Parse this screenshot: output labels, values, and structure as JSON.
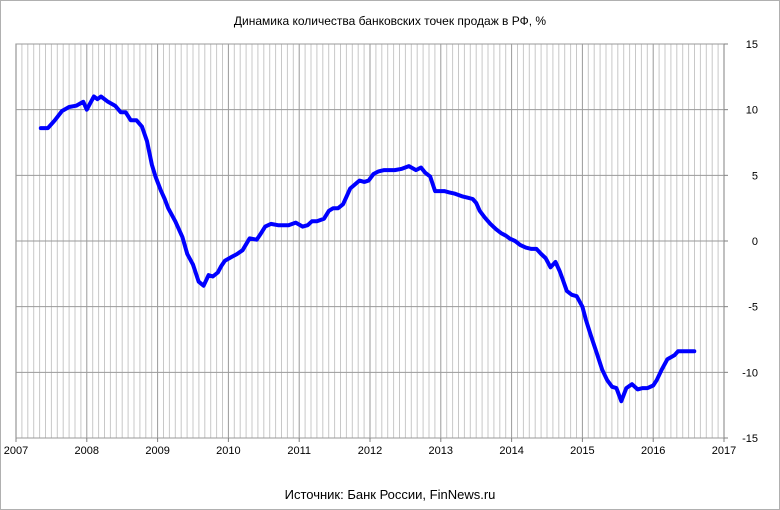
{
  "chart_data": {
    "type": "line",
    "title": "Динамика количества банковских точек продаж в РФ, %",
    "source": "Источник: Банк России, FinNews.ru",
    "xlabel": "",
    "ylabel": "",
    "xlim": [
      2007,
      2017
    ],
    "ylim": [
      -15,
      15
    ],
    "x_ticks": [
      "2007",
      "2008",
      "2009",
      "2010",
      "2011",
      "2012",
      "2013",
      "2014",
      "2015",
      "2016",
      "2017"
    ],
    "y_ticks": [
      "15",
      "10",
      "5",
      "0",
      "-5",
      "-10",
      "-15"
    ],
    "grid": true,
    "legend": "none",
    "series": [
      {
        "color": "#0000ff",
        "x": [
          2007.35,
          2007.45,
          2007.55,
          2007.65,
          2007.75,
          2007.85,
          2007.95,
          2008.0,
          2008.05,
          2008.1,
          2008.15,
          2008.2,
          2008.3,
          2008.4,
          2008.48,
          2008.55,
          2008.62,
          2008.7,
          2008.78,
          2008.85,
          2008.92,
          2008.97,
          2009.05,
          2009.1,
          2009.15,
          2009.25,
          2009.35,
          2009.42,
          2009.5,
          2009.58,
          2009.65,
          2009.72,
          2009.78,
          2009.85,
          2009.9,
          2009.95,
          2010.05,
          2010.12,
          2010.2,
          2010.3,
          2010.4,
          2010.45,
          2010.52,
          2010.6,
          2010.7,
          2010.78,
          2010.85,
          2010.95,
          2011.05,
          2011.12,
          2011.18,
          2011.25,
          2011.35,
          2011.42,
          2011.48,
          2011.55,
          2011.62,
          2011.72,
          2011.85,
          2011.92,
          2011.98,
          2012.05,
          2012.12,
          2012.2,
          2012.28,
          2012.35,
          2012.45,
          2012.55,
          2012.65,
          2012.72,
          2012.78,
          2012.85,
          2012.92,
          2013.0,
          2013.05,
          2013.12,
          2013.2,
          2013.3,
          2013.38,
          2013.45,
          2013.5,
          2013.55,
          2013.62,
          2013.7,
          2013.78,
          2013.85,
          2013.92,
          2013.97,
          2014.05,
          2014.12,
          2014.2,
          2014.28,
          2014.35,
          2014.42,
          2014.48,
          2014.55,
          2014.62,
          2014.68,
          2014.72,
          2014.78,
          2014.85,
          2014.92,
          2015.0,
          2015.05,
          2015.12,
          2015.2,
          2015.28,
          2015.35,
          2015.42,
          2015.48,
          2015.55,
          2015.62,
          2015.7,
          2015.78,
          2015.85,
          2015.92,
          2016.0,
          2016.05,
          2016.12,
          2016.2,
          2016.3,
          2016.35,
          2016.42,
          2016.5,
          2016.58
        ],
        "y": [
          8.6,
          8.6,
          9.2,
          9.9,
          10.2,
          10.3,
          10.6,
          10.0,
          10.5,
          11.0,
          10.8,
          11.0,
          10.6,
          10.3,
          9.8,
          9.8,
          9.2,
          9.2,
          8.7,
          7.6,
          5.8,
          4.9,
          3.8,
          3.2,
          2.5,
          1.5,
          0.3,
          -1.0,
          -1.8,
          -3.1,
          -3.4,
          -2.6,
          -2.7,
          -2.4,
          -1.9,
          -1.5,
          -1.2,
          -1.0,
          -0.7,
          0.2,
          0.1,
          0.5,
          1.1,
          1.3,
          1.2,
          1.2,
          1.2,
          1.4,
          1.1,
          1.2,
          1.5,
          1.5,
          1.7,
          2.3,
          2.5,
          2.5,
          2.8,
          4.0,
          4.6,
          4.5,
          4.6,
          5.1,
          5.3,
          5.4,
          5.4,
          5.4,
          5.5,
          5.7,
          5.4,
          5.6,
          5.2,
          4.9,
          3.8,
          3.8,
          3.8,
          3.7,
          3.6,
          3.4,
          3.3,
          3.2,
          2.9,
          2.3,
          1.8,
          1.3,
          0.9,
          0.6,
          0.4,
          0.2,
          0.0,
          -0.3,
          -0.5,
          -0.6,
          -0.6,
          -1.0,
          -1.3,
          -2.0,
          -1.6,
          -2.3,
          -2.9,
          -3.8,
          -4.1,
          -4.2,
          -5.0,
          -6.0,
          -7.2,
          -8.5,
          -9.8,
          -10.6,
          -11.1,
          -11.2,
          -12.2,
          -11.2,
          -10.9,
          -11.3,
          -11.2,
          -11.2,
          -11.0,
          -10.6,
          -9.8,
          -9.0,
          -8.7,
          -8.4,
          -8.4,
          -8.4,
          -8.4
        ]
      }
    ]
  }
}
